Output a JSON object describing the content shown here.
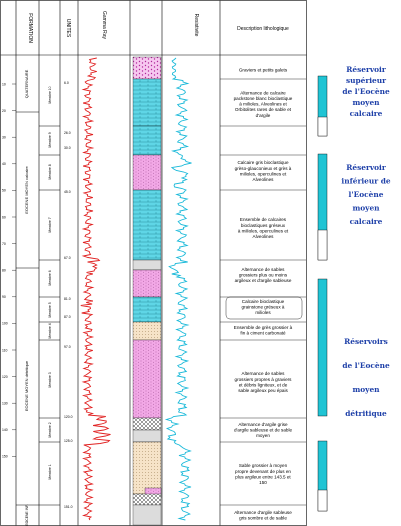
{
  "headers": {
    "formation": "FORMATION",
    "unites": "UNITES",
    "gamma_ray": "Gamma Ray",
    "resistivite": "Resistivite",
    "description": "Description lithologique"
  },
  "formations": [
    {
      "label": "QUATERNAIRE"
    },
    {
      "label": "EOCENE MOYEN calcaire"
    },
    {
      "label": "EOCENE MOYEN détritique"
    },
    {
      "label": "EOCENE INF."
    }
  ],
  "units": [
    {
      "label": "Membre 10"
    },
    {
      "label": "Membre 9"
    },
    {
      "label": "Membre 8"
    },
    {
      "label": "Membre 7"
    },
    {
      "label": "Membre 6"
    },
    {
      "label": "Membre 5"
    },
    {
      "label": "Membre 4"
    },
    {
      "label": "Membre 3"
    },
    {
      "label": "Membre 2"
    },
    {
      "label": "Membre 1"
    }
  ],
  "depth_ticks": [
    "10",
    "20",
    "30",
    "40",
    "50",
    "60",
    "70",
    "80",
    "90",
    "100",
    "110",
    "120",
    "130",
    "140",
    "150"
  ],
  "sample_depths": [
    "6.0",
    "26.0",
    "30.0",
    "45.0",
    "67.0",
    "81.0",
    "87.0",
    "97.0",
    "120.0",
    "125.0",
    "151.0"
  ],
  "descriptions": [
    {
      "lines": [
        "Graviers et petits galets"
      ]
    },
    {
      "lines": [
        "Alternance de calcaire",
        "packstone blanc bioclastique",
        "à milioles, Alveolines et",
        "Orbitolites rares de sable et",
        "d'argile"
      ]
    },
    {
      "lines": [
        "Calcaire gris bioclastique",
        "grèso-glauconieux et grès à",
        "milioles, operculines et",
        "Alveolines"
      ]
    },
    {
      "lines": [
        "Ensemble de calcaires",
        "bioclastiques gréseux",
        "à milioles, operculines et",
        "Alveolines"
      ]
    },
    {
      "lines": [
        "Alternance de sables",
        "grossiers plus ou moins",
        "argileux et d'argile sableuse"
      ]
    },
    {
      "lines": [
        "Calcaire bioclastique",
        "grainstone gréseux à",
        "milioles"
      ]
    },
    {
      "lines": [
        "Ensemble de grès grossier à",
        "fin à ciment carbonaté"
      ]
    },
    {
      "lines": [
        "Alternance de sables",
        "grossiers propres à graviers",
        "et débris ligniteux, et de",
        "sable argileux peu épais"
      ]
    },
    {
      "lines": [
        "Alternance d'argile grise",
        "d'argile sableuse et de sable",
        "moyen"
      ]
    },
    {
      "lines": [
        "Sable grossier à moyen",
        "propre devenant de plus en",
        "plus argileux entre 143.5 et",
        "150"
      ]
    },
    {
      "lines": [
        "Alternance d'argile sableuse",
        "gris sombre et de sable"
      ]
    }
  ],
  "reservoirs": [
    {
      "lines": [
        "Réservoir",
        "supérieur",
        "de l'Eocène",
        "moyen",
        "calcaire"
      ]
    },
    {
      "lines": [
        "Réservoir",
        "inférieur de",
        "l'Eocène",
        "moyen",
        "calcaire"
      ]
    },
    {
      "lines": [
        "Réservoirs",
        "de l'Eocène",
        "moyen",
        "détritique"
      ]
    }
  ],
  "colors": {
    "gamma_curve": "#e02020",
    "resistivity_curve": "#19b9d9",
    "reservoir_fill": "#20c4d4",
    "reservoir_text": "#1d3fa8",
    "carbonate_fill": "#5fd6e6",
    "sand_fill": "#f2a8e6"
  }
}
